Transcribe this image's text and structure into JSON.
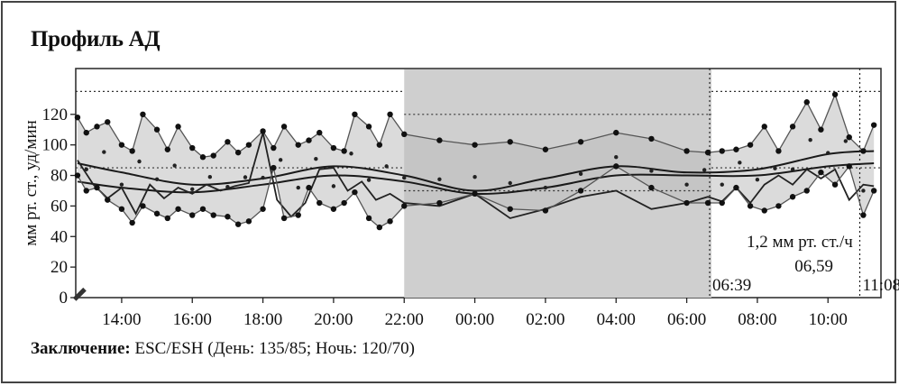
{
  "title": "Профиль АД",
  "conclusion": {
    "label": "Заключение:",
    "text": "ESC/ESH (День: 135/85; Ночь: 120/70)"
  },
  "chart_data": {
    "type": "line",
    "title": "Профиль АД",
    "ylabel": "мм рт. ст., уд/мин",
    "ylim": [
      0,
      150
    ],
    "yticks": [
      0,
      20,
      40,
      60,
      80,
      100,
      120
    ],
    "xlim": [
      12.7,
      35.5
    ],
    "xticks": [
      {
        "v": 14,
        "label": "14:00"
      },
      {
        "v": 16,
        "label": "16:00"
      },
      {
        "v": 18,
        "label": "18:00"
      },
      {
        "v": 20,
        "label": "20:00"
      },
      {
        "v": 22,
        "label": "22:00"
      },
      {
        "v": 24,
        "label": "00:00"
      },
      {
        "v": 26,
        "label": "02:00"
      },
      {
        "v": 28,
        "label": "04:00"
      },
      {
        "v": 30,
        "label": "06:00"
      },
      {
        "v": 32,
        "label": "08:00"
      },
      {
        "v": 34,
        "label": "10:00"
      }
    ],
    "night_period": [
      22,
      30.7
    ],
    "thresholds": [
      {
        "y": 135,
        "x": [
          12.7,
          22
        ]
      },
      {
        "y": 85,
        "x": [
          12.7,
          22
        ]
      },
      {
        "y": 120,
        "x": [
          22,
          30.7
        ]
      },
      {
        "y": 70,
        "x": [
          22,
          30.7
        ]
      },
      {
        "y": 135,
        "x": [
          30.7,
          35.5
        ]
      },
      {
        "y": 85,
        "x": [
          30.7,
          35.5
        ]
      }
    ],
    "markers": [
      {
        "x": 30.65,
        "label": "06:39"
      },
      {
        "x": 34.9,
        "label": "11:08"
      }
    ],
    "annotations": [
      {
        "text": "1,2 мм рт. ст./ч",
        "x": 33.2,
        "y": 33
      },
      {
        "text": "06,59",
        "x": 33.6,
        "y": 17
      }
    ],
    "series": [
      {
        "id": "systolic",
        "x": [
          12.75,
          13.0,
          13.3,
          13.6,
          14.0,
          14.3,
          14.6,
          15.0,
          15.3,
          15.6,
          16.0,
          16.3,
          16.6,
          17.0,
          17.3,
          17.6,
          18.0,
          18.3,
          18.6,
          19.0,
          19.3,
          19.6,
          20.0,
          20.3,
          20.6,
          21.0,
          21.3,
          21.6,
          22.0,
          23.0,
          24.0,
          25.0,
          26.0,
          27.0,
          28.0,
          29.0,
          30.0,
          30.6,
          31.0,
          31.4,
          31.8,
          32.2,
          32.6,
          33.0,
          33.4,
          33.8,
          34.2,
          34.6,
          35.0,
          35.3
        ],
        "values": [
          118,
          108,
          112,
          115,
          100,
          96,
          120,
          110,
          97,
          112,
          98,
          92,
          93,
          102,
          95,
          100,
          109,
          98,
          112,
          100,
          103,
          108,
          98,
          96,
          120,
          112,
          100,
          120,
          107,
          103,
          100,
          102,
          97,
          102,
          108,
          104,
          96,
          95,
          96,
          97,
          100,
          112,
          96,
          112,
          128,
          110,
          133,
          105,
          96,
          113
        ]
      },
      {
        "id": "diastolic",
        "x": [
          12.75,
          13.0,
          13.3,
          13.6,
          14.0,
          14.3,
          14.6,
          15.0,
          15.3,
          15.6,
          16.0,
          16.3,
          16.6,
          17.0,
          17.3,
          17.6,
          18.0,
          18.3,
          18.6,
          19.0,
          19.3,
          19.6,
          20.0,
          20.3,
          20.6,
          21.0,
          21.3,
          21.6,
          22.0,
          23.0,
          24.0,
          25.0,
          26.0,
          27.0,
          28.0,
          29.0,
          30.0,
          30.6,
          31.0,
          31.4,
          31.8,
          32.2,
          32.6,
          33.0,
          33.4,
          33.8,
          34.2,
          34.6,
          35.0,
          35.3
        ],
        "values": [
          80,
          70,
          72,
          64,
          58,
          49,
          60,
          55,
          52,
          58,
          54,
          58,
          54,
          53,
          48,
          50,
          58,
          85,
          52,
          54,
          72,
          62,
          58,
          62,
          69,
          52,
          46,
          50,
          60,
          62,
          68,
          58,
          57,
          70,
          86,
          72,
          62,
          62,
          62,
          72,
          60,
          57,
          60,
          66,
          70,
          82,
          74,
          86,
          54,
          70
        ]
      },
      {
        "id": "heart_rate",
        "x": [
          12.75,
          13.2,
          13.6,
          14.0,
          14.4,
          14.8,
          15.2,
          15.6,
          16.0,
          16.4,
          16.8,
          17.2,
          17.6,
          18.0,
          18.4,
          18.8,
          19.2,
          19.6,
          20.0,
          20.4,
          20.8,
          21.2,
          21.6,
          22.0,
          23.0,
          24.0,
          25.0,
          26.0,
          27.0,
          28.0,
          29.0,
          30.0,
          30.6,
          31.0,
          31.4,
          31.8,
          32.2,
          32.6,
          33.0,
          33.4,
          33.8,
          34.2,
          34.6,
          35.0,
          35.3
        ],
        "values": [
          90,
          74,
          65,
          72,
          55,
          74,
          65,
          72,
          68,
          74,
          70,
          73,
          75,
          108,
          64,
          53,
          62,
          84,
          85,
          70,
          76,
          64,
          68,
          62,
          60,
          68,
          52,
          58,
          66,
          70,
          58,
          62,
          66,
          63,
          72,
          62,
          74,
          80,
          74,
          84,
          78,
          84,
          64,
          74,
          73
        ]
      },
      {
        "id": "trend_a",
        "x": [
          12.75,
          14,
          16,
          18,
          20,
          22,
          24,
          26,
          28,
          30,
          32,
          34,
          35.3
        ],
        "values": [
          88,
          82,
          74,
          78,
          86,
          80,
          70,
          78,
          86,
          82,
          84,
          94,
          96
        ]
      },
      {
        "id": "trend_b",
        "x": [
          12.75,
          14,
          16,
          18,
          20,
          22,
          24,
          26,
          28,
          30,
          32,
          34,
          35.3
        ],
        "values": [
          76,
          72,
          69,
          74,
          80,
          76,
          68,
          72,
          80,
          80,
          80,
          86,
          88
        ]
      }
    ]
  }
}
